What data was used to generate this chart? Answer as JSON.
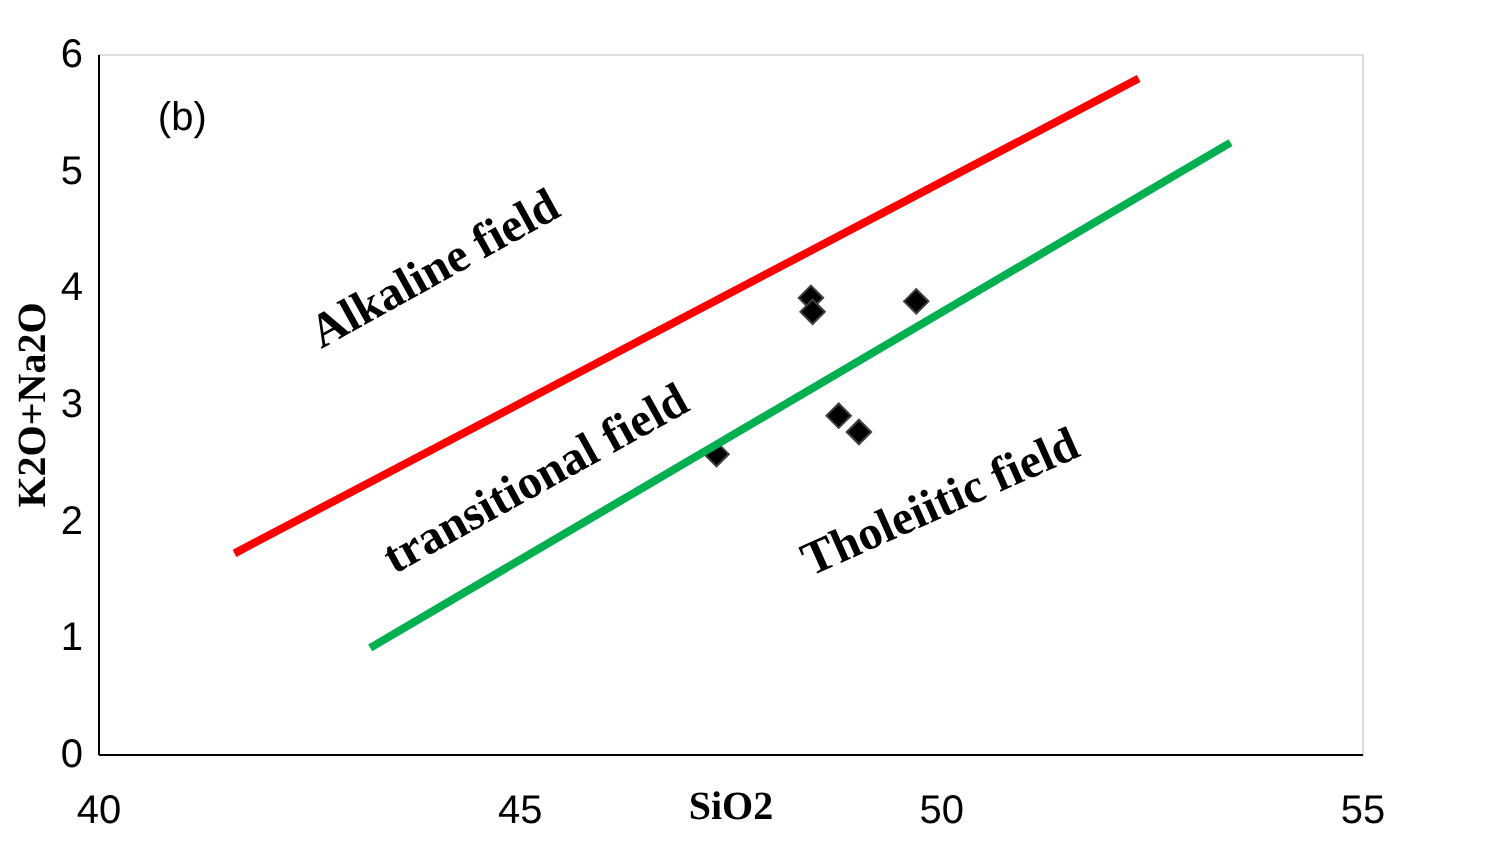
{
  "chart_data": {
    "type": "scatter",
    "xlabel": "SiO2",
    "ylabel": "K2O+Na2O",
    "xlim": [
      40,
      55
    ],
    "xticks": [
      40,
      45,
      50,
      55
    ],
    "ylim": [
      0,
      6
    ],
    "yticks": [
      0,
      1,
      2,
      3,
      4,
      5,
      6
    ],
    "grid": false,
    "series": [
      {
        "marker": "diamond",
        "color": "#000000",
        "x": [
          47.34,
          48.46,
          48.48,
          48.79,
          49.03,
          49.71
        ],
        "values": [
          2.57,
          3.91,
          3.79,
          2.9,
          2.76,
          3.88
        ]
      },
      {
        "type": "line",
        "marker": "none",
        "color": "#ff0000",
        "x": [
          41.62,
          52.35
        ],
        "values": [
          1.72,
          5.79
        ]
      },
      {
        "type": "line",
        "marker": "none",
        "color": "#00b050",
        "x": [
          43.23,
          53.44
        ],
        "values": [
          0.91,
          5.24
        ]
      }
    ],
    "annotations": [
      "(b)",
      "Alkaline field",
      "transitional field",
      "Tholeiitic field"
    ]
  }
}
